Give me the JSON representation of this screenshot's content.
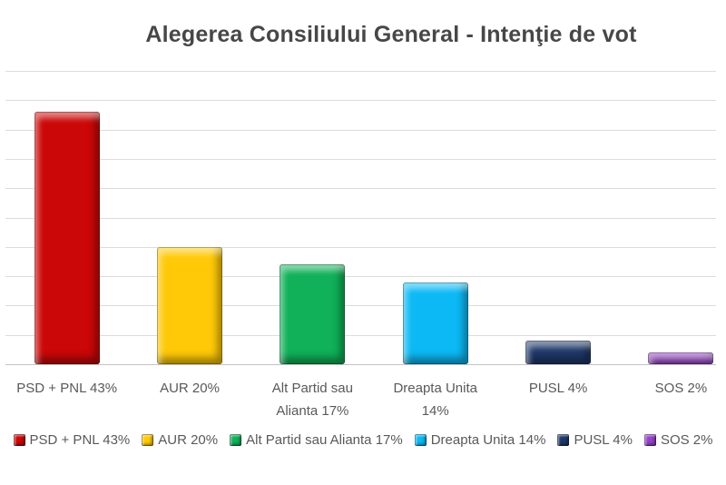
{
  "title": "Alegerea Consiliului General - Intenţie de vot",
  "colors": {
    "background": "#ffffff",
    "title_text": "#474747",
    "axis_text": "#595959",
    "gridline": "#dcdcdc",
    "baseline": "#c3c3c3"
  },
  "chart_data": {
    "type": "bar",
    "title": "Alegerea Consiliului General - Intenţie de vot",
    "categories": [
      "PSD + PNL 43%",
      "AUR 20%",
      "Alt Partid sau Alianta 17%",
      "Dreapta Unita 14%",
      "PUSL 4%",
      "SOS 2%"
    ],
    "values": [
      43,
      20,
      17,
      14,
      4,
      2
    ],
    "bar_colors": [
      "#cb0707",
      "#ffc908",
      "#10b158",
      "#0cb9f5",
      "#1f3869",
      "#9741c9"
    ],
    "xlabel": "",
    "ylabel": "",
    "ylim": [
      0,
      50
    ],
    "gridline_step": 5,
    "grid": true,
    "y_tick_labels_visible": false,
    "legend_position": "bottom",
    "legend": [
      {
        "label": "PSD + PNL 43%",
        "color": "#cb0707"
      },
      {
        "label": "AUR 20%",
        "color": "#ffc908"
      },
      {
        "label": "Alt Partid sau Alianta 17%",
        "color": "#10b158"
      },
      {
        "label": "Dreapta Unita 14%",
        "color": "#0cb9f5"
      },
      {
        "label": "PUSL 4%",
        "color": "#1f3869"
      },
      {
        "label": "SOS 2%",
        "color": "#9741c9"
      }
    ]
  }
}
